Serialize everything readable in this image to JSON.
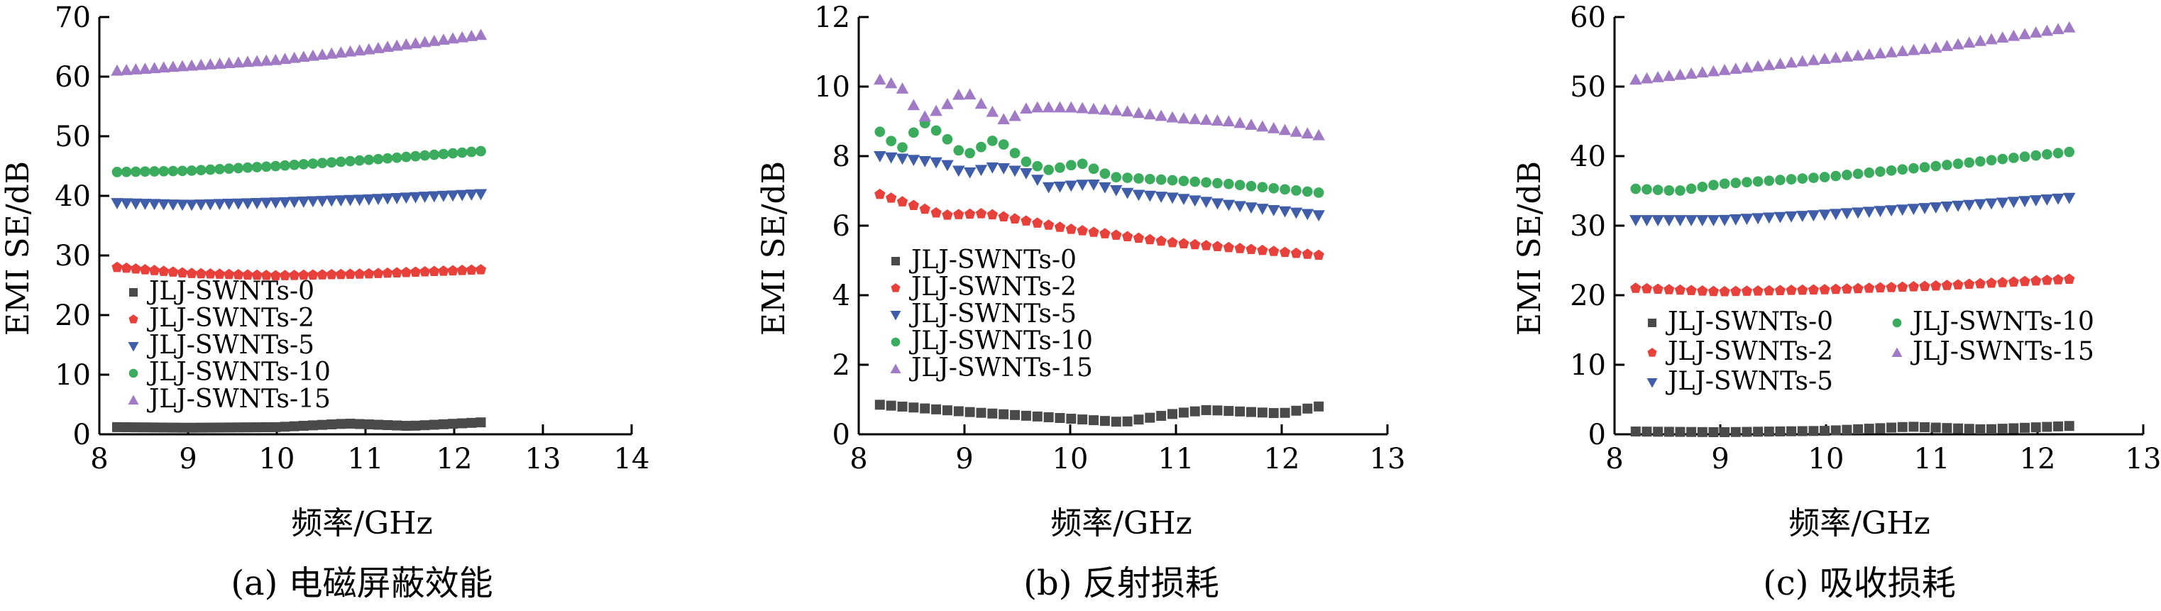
{
  "colors": {
    "JLJ-SWNTs-0": "#4a4a4a",
    "JLJ-SWNTs-2": "#e8413b",
    "JLJ-SWNTs-5": "#3f5da8",
    "JLJ-SWNTs-10": "#3bab5e",
    "JLJ-SWNTs-15": "#a07ac4"
  },
  "markers": {
    "JLJ-SWNTs-0": "square",
    "JLJ-SWNTs-2": "pentagon",
    "JLJ-SWNTs-5": "triangle-down",
    "JLJ-SWNTs-10": "circle",
    "JLJ-SWNTs-15": "triangle-up"
  },
  "chart_data": [
    {
      "type": "scatter",
      "caption": "(a) 电磁屏蔽效能",
      "xlabel": "频率/GHz",
      "ylabel": "EMI SE/dB",
      "xlim": [
        8,
        14
      ],
      "ylim": [
        0,
        70
      ],
      "xticks": [
        8,
        9,
        10,
        11,
        12,
        13,
        14
      ],
      "yticks": [
        0,
        10,
        20,
        30,
        40,
        50,
        60,
        70
      ],
      "legend_position": "lower-left",
      "legend_columns": 1,
      "x": {
        "start": 8.2,
        "end": 12.3,
        "count": 40
      },
      "series": [
        {
          "name": "JLJ-SWNTs-0",
          "keypoints": [
            [
              8.2,
              1.2
            ],
            [
              9.0,
              1.1
            ],
            [
              10.0,
              1.2
            ],
            [
              10.8,
              1.8
            ],
            [
              11.5,
              1.4
            ],
            [
              12.3,
              2.0
            ]
          ]
        },
        {
          "name": "JLJ-SWNTs-2",
          "keypoints": [
            [
              8.2,
              28.0
            ],
            [
              9.0,
              27.0
            ],
            [
              10.0,
              26.6
            ],
            [
              11.0,
              26.9
            ],
            [
              12.3,
              27.6
            ]
          ]
        },
        {
          "name": "JLJ-SWNTs-5",
          "keypoints": [
            [
              8.2,
              38.8
            ],
            [
              9.0,
              38.5
            ],
            [
              10.0,
              38.9
            ],
            [
              11.0,
              39.4
            ],
            [
              12.3,
              40.3
            ]
          ]
        },
        {
          "name": "JLJ-SWNTs-10",
          "keypoints": [
            [
              8.2,
              44.0
            ],
            [
              9.0,
              44.2
            ],
            [
              10.0,
              45.0
            ],
            [
              11.0,
              46.0
            ],
            [
              12.3,
              47.5
            ]
          ]
        },
        {
          "name": "JLJ-SWNTs-15",
          "keypoints": [
            [
              8.2,
              61.0
            ],
            [
              9.0,
              61.8
            ],
            [
              10.0,
              62.8
            ],
            [
              11.0,
              64.5
            ],
            [
              12.3,
              67.0
            ]
          ]
        }
      ]
    },
    {
      "type": "scatter",
      "caption": "(b) 反射损耗",
      "xlabel": "频率/GHz",
      "ylabel": "EMI SE/dB",
      "xlim": [
        8,
        13
      ],
      "ylim": [
        0,
        12
      ],
      "xticks": [
        8,
        9,
        10,
        11,
        12,
        13
      ],
      "yticks": [
        0,
        2,
        4,
        6,
        8,
        10,
        12
      ],
      "legend_position": "lower-left",
      "legend_columns": 1,
      "x": {
        "start": 8.2,
        "end": 12.35,
        "count": 40
      },
      "series": [
        {
          "name": "JLJ-SWNTs-0",
          "keypoints": [
            [
              8.2,
              0.85
            ],
            [
              9.0,
              0.65
            ],
            [
              10.0,
              0.45
            ],
            [
              10.5,
              0.35
            ],
            [
              11.0,
              0.6
            ],
            [
              11.3,
              0.7
            ],
            [
              12.0,
              0.6
            ],
            [
              12.35,
              0.8
            ]
          ]
        },
        {
          "name": "JLJ-SWNTs-2",
          "keypoints": [
            [
              8.2,
              6.9
            ],
            [
              8.5,
              6.6
            ],
            [
              8.8,
              6.3
            ],
            [
              9.2,
              6.35
            ],
            [
              10.0,
              5.9
            ],
            [
              11.0,
              5.5
            ],
            [
              12.35,
              5.15
            ]
          ]
        },
        {
          "name": "JLJ-SWNTs-5",
          "keypoints": [
            [
              8.2,
              8.0
            ],
            [
              8.8,
              7.8
            ],
            [
              9.0,
              7.5
            ],
            [
              9.3,
              7.7
            ],
            [
              9.6,
              7.5
            ],
            [
              9.8,
              7.1
            ],
            [
              10.2,
              7.2
            ],
            [
              10.6,
              6.9
            ],
            [
              11.0,
              6.8
            ],
            [
              11.5,
              6.6
            ],
            [
              12.35,
              6.3
            ]
          ]
        },
        {
          "name": "JLJ-SWNTs-10",
          "keypoints": [
            [
              8.2,
              8.7
            ],
            [
              8.4,
              8.2
            ],
            [
              8.6,
              9.0
            ],
            [
              8.8,
              8.6
            ],
            [
              9.0,
              8.0
            ],
            [
              9.3,
              8.5
            ],
            [
              9.6,
              7.8
            ],
            [
              9.8,
              7.6
            ],
            [
              10.1,
              7.8
            ],
            [
              10.4,
              7.4
            ],
            [
              11.0,
              7.3
            ],
            [
              11.5,
              7.2
            ],
            [
              12.35,
              6.95
            ]
          ]
        },
        {
          "name": "JLJ-SWNTs-15",
          "keypoints": [
            [
              8.2,
              10.2
            ],
            [
              8.4,
              10.0
            ],
            [
              8.6,
              9.1
            ],
            [
              8.8,
              9.4
            ],
            [
              9.0,
              9.9
            ],
            [
              9.2,
              9.4
            ],
            [
              9.4,
              9.0
            ],
            [
              9.6,
              9.4
            ],
            [
              10.0,
              9.4
            ],
            [
              10.5,
              9.3
            ],
            [
              11.0,
              9.1
            ],
            [
              11.5,
              9.0
            ],
            [
              12.35,
              8.6
            ]
          ]
        }
      ]
    },
    {
      "type": "scatter",
      "caption": "(c) 吸收损耗",
      "xlabel": "频率/GHz",
      "ylabel": "EMI SE/dB",
      "xlim": [
        8,
        13
      ],
      "ylim": [
        0,
        60
      ],
      "xticks": [
        8,
        9,
        10,
        11,
        12,
        13
      ],
      "yticks": [
        0,
        10,
        20,
        30,
        40,
        50,
        60
      ],
      "legend_position": "lower-left",
      "legend_columns": 2,
      "x": {
        "start": 8.2,
        "end": 12.3,
        "count": 40
      },
      "series": [
        {
          "name": "JLJ-SWNTs-0",
          "keypoints": [
            [
              8.2,
              0.4
            ],
            [
              9.0,
              0.3
            ],
            [
              10.0,
              0.5
            ],
            [
              10.8,
              1.1
            ],
            [
              11.5,
              0.7
            ],
            [
              12.3,
              1.2
            ]
          ]
        },
        {
          "name": "JLJ-SWNTs-2",
          "keypoints": [
            [
              8.2,
              21.0
            ],
            [
              9.0,
              20.5
            ],
            [
              10.0,
              20.8
            ],
            [
              11.0,
              21.3
            ],
            [
              12.3,
              22.3
            ]
          ]
        },
        {
          "name": "JLJ-SWNTs-5",
          "keypoints": [
            [
              8.2,
              30.8
            ],
            [
              9.0,
              30.8
            ],
            [
              10.0,
              31.6
            ],
            [
              11.0,
              32.6
            ],
            [
              12.3,
              34.0
            ]
          ]
        },
        {
          "name": "JLJ-SWNTs-10",
          "keypoints": [
            [
              8.2,
              35.3
            ],
            [
              8.6,
              35.0
            ],
            [
              9.0,
              36.0
            ],
            [
              10.0,
              37.0
            ],
            [
              11.0,
              38.5
            ],
            [
              12.3,
              40.6
            ]
          ]
        },
        {
          "name": "JLJ-SWNTs-15",
          "keypoints": [
            [
              8.2,
              51.0
            ],
            [
              9.0,
              52.3
            ],
            [
              10.0,
              54.0
            ],
            [
              11.0,
              55.5
            ],
            [
              12.3,
              58.5
            ]
          ]
        }
      ]
    }
  ]
}
